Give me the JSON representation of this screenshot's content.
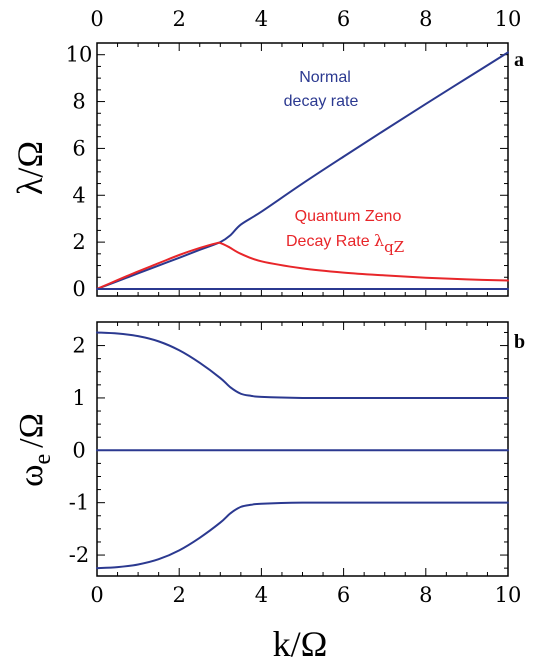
{
  "colors": {
    "blue": "#2b3990",
    "red": "#e8262a",
    "frame": "#000000"
  },
  "chart_data": [
    {
      "type": "line",
      "panel_label": "a",
      "ylabel_main": "λ/Ω",
      "xticks": [
        "0",
        "2",
        "4",
        "6",
        "8",
        "10"
      ],
      "yticks": [
        "0",
        "2",
        "4",
        "6",
        "8",
        "10"
      ],
      "xlim": [
        0,
        10
      ],
      "ylim": [
        -0.3,
        10.5
      ],
      "annotations": [
        {
          "lines": [
            "Normal",
            "decay rate"
          ],
          "color": "blue"
        },
        {
          "lines": [
            "Quantum Zeno",
            "Decay Rate"
          ],
          "symbol": "λ",
          "subscript": "qZ",
          "color": "red"
        }
      ],
      "series": [
        {
          "color": "blue",
          "x": [
            0,
            0.5,
            1,
            1.5,
            2,
            2.5,
            3,
            3.25,
            3.5,
            4,
            5,
            6,
            7,
            8,
            9,
            10
          ],
          "values": [
            0,
            0.33,
            0.67,
            1.0,
            1.33,
            1.67,
            2.0,
            2.3,
            2.75,
            3.3,
            4.5,
            5.65,
            6.78,
            7.9,
            9.0,
            10.1
          ]
        },
        {
          "color": "red",
          "x": [
            0,
            0.5,
            1,
            1.5,
            2,
            2.5,
            2.9,
            3.0,
            3.2,
            3.5,
            4,
            5,
            6,
            7,
            8,
            9,
            10
          ],
          "values": [
            0,
            0.38,
            0.75,
            1.1,
            1.45,
            1.75,
            1.95,
            1.96,
            1.8,
            1.5,
            1.18,
            0.88,
            0.7,
            0.58,
            0.48,
            0.41,
            0.36
          ]
        },
        {
          "color": "blue",
          "x": [
            0,
            10
          ],
          "values": [
            0,
            0
          ]
        }
      ]
    },
    {
      "type": "line",
      "panel_label": "b",
      "ylabel_main": "ω",
      "ylabel_sub": "e",
      "ylabel_tail": "/Ω",
      "xlabel": "k/Ω",
      "xticks": [
        "0",
        "2",
        "4",
        "6",
        "8",
        "10"
      ],
      "yticks": [
        "-2",
        "-1",
        "0",
        "1",
        "2"
      ],
      "ytick_values": [
        -2,
        -1,
        0,
        1,
        2
      ],
      "xlim": [
        0,
        10
      ],
      "ylim": [
        -2.4,
        2.45
      ],
      "series": [
        {
          "color": "blue",
          "x": [
            0,
            0.5,
            1,
            1.5,
            2,
            2.5,
            3,
            3.25,
            3.5,
            3.75,
            4,
            5,
            6,
            7,
            8,
            9,
            10
          ],
          "values": [
            2.25,
            2.23,
            2.18,
            2.08,
            1.91,
            1.67,
            1.38,
            1.2,
            1.08,
            1.04,
            1.02,
            1.0,
            1.0,
            1.0,
            1.0,
            1.0,
            1.0
          ]
        },
        {
          "color": "blue",
          "x": [
            0,
            10
          ],
          "values": [
            0,
            0
          ]
        },
        {
          "color": "blue",
          "x": [
            0,
            0.5,
            1,
            1.5,
            2,
            2.5,
            3,
            3.25,
            3.5,
            3.75,
            4,
            5,
            6,
            7,
            8,
            9,
            10
          ],
          "values": [
            -2.25,
            -2.23,
            -2.18,
            -2.08,
            -1.91,
            -1.67,
            -1.38,
            -1.2,
            -1.08,
            -1.04,
            -1.02,
            -1.0,
            -1.0,
            -1.0,
            -1.0,
            -1.0,
            -1.0
          ]
        }
      ]
    }
  ]
}
